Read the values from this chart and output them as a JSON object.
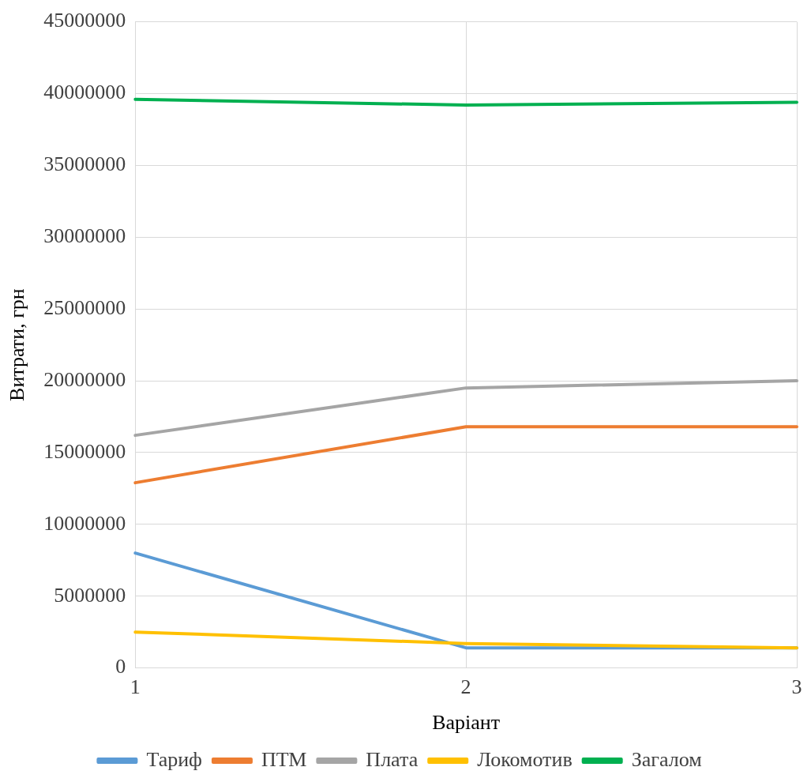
{
  "chart_data": {
    "type": "line",
    "xlabel": "Варіант",
    "ylabel": "Витрати, грн",
    "categories": [
      "1",
      "2",
      "3"
    ],
    "series": [
      {
        "name": "Тариф",
        "color": "#5b9bd5",
        "values": [
          8000000,
          1400000,
          1400000
        ]
      },
      {
        "name": "ПТМ",
        "color": "#ed7d31",
        "values": [
          12900000,
          16800000,
          16800000
        ]
      },
      {
        "name": "Плата",
        "color": "#a5a5a5",
        "values": [
          16200000,
          19500000,
          20000000
        ]
      },
      {
        "name": "Локомотив",
        "color": "#ffc000",
        "values": [
          2500000,
          1700000,
          1400000
        ]
      },
      {
        "name": "Загалом",
        "color": "#00b050",
        "values": [
          39600000,
          39200000,
          39400000
        ]
      }
    ],
    "ylim": [
      0,
      45000000
    ],
    "yticks": [
      0,
      5000000,
      10000000,
      15000000,
      20000000,
      25000000,
      30000000,
      35000000,
      40000000,
      45000000
    ],
    "grid": true,
    "legend": "bottom",
    "marker": "none",
    "line_style": "solid"
  }
}
